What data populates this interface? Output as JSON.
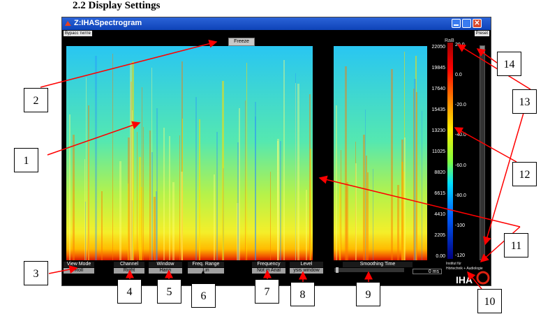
{
  "caption_top": "2.2   Display Settings",
  "window": {
    "title": "Z:IHASpectrogram",
    "close_glyph": "✕"
  },
  "menu": {
    "left_label": "Вурасс тилте",
    "right_label": "Preset"
  },
  "freeze_button": "Freeze",
  "rab_label": "RaB",
  "freq_ticks": [
    "22050",
    "19845",
    "17640",
    "15435",
    "13230",
    "11025",
    "8820",
    "6615",
    "4410",
    "2205",
    "0.00"
  ],
  "level_ticks": [
    "20.0",
    "0.0",
    "-20.0",
    "-40.0",
    "-60.0",
    "-80.0",
    "-100",
    "-120"
  ],
  "controls": [
    {
      "label": "View Mode",
      "value": "Roll"
    },
    {
      "label": "Channel",
      "value": "Right"
    },
    {
      "label": "Window",
      "value": "Hann"
    },
    {
      "label": "Freq. Range",
      "value": "Lin"
    },
    {
      "label": "Frequency",
      "value": "Not in Anal"
    },
    {
      "label": "Level",
      "value": "ysis window"
    }
  ],
  "smoothing": {
    "label": "Smoothing Time",
    "value": "0 ms"
  },
  "logo": {
    "line1": "Institut für",
    "line2": "Hörtechnik + Audiologie",
    "brand": "IHA"
  },
  "callouts": [
    "1",
    "2",
    "3",
    "4",
    "5",
    "6",
    "7",
    "8",
    "9",
    "10",
    "11",
    "12",
    "13",
    "14"
  ],
  "colors": {
    "title_bar": "#1a54c8",
    "annotation_arrow": "#ff0000",
    "freq_range_arrow": "#000000",
    "window_bg": "#000000"
  }
}
